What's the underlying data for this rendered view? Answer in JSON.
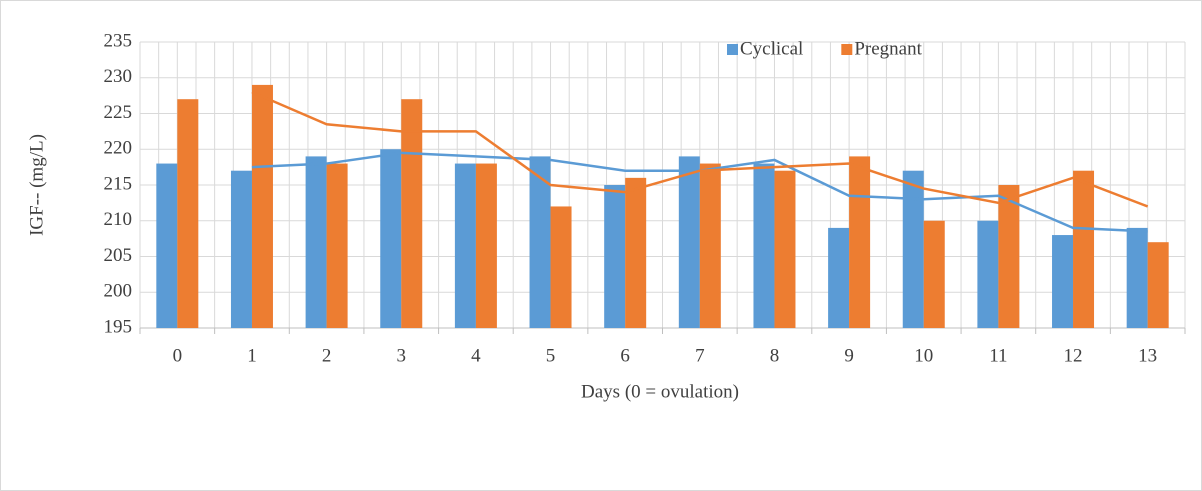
{
  "chart_data": {
    "type": "bar",
    "xlabel": "Days (0 = ovulation)",
    "ylabel": "IGF-- (mg/L)",
    "categories": [
      "0",
      "1",
      "2",
      "3",
      "4",
      "5",
      "6",
      "7",
      "8",
      "9",
      "10",
      "11",
      "12",
      "13"
    ],
    "series": [
      {
        "name": "Cyclical",
        "color": "#5b9bd5",
        "values": [
          218,
          217,
          219,
          220,
          218,
          219,
          215,
          219,
          218,
          209,
          217,
          210,
          208,
          209
        ],
        "trend": [
          null,
          217.5,
          218,
          219.5,
          219,
          218.5,
          217,
          217,
          218.5,
          213.5,
          213,
          213.5,
          209,
          208.5
        ]
      },
      {
        "name": "Pregnant",
        "color": "#ed7d31",
        "values": [
          227,
          229,
          218,
          227,
          218,
          212,
          216,
          218,
          217,
          219,
          210,
          215,
          217,
          207
        ],
        "trend": [
          null,
          228,
          223.5,
          222.5,
          222.5,
          215,
          214,
          217,
          217.5,
          218,
          214.5,
          212.5,
          216,
          212
        ]
      }
    ],
    "ylim": [
      195,
      235
    ],
    "yticks": [
      195,
      200,
      205,
      210,
      215,
      220,
      225,
      230,
      235
    ],
    "grid": true,
    "legend": "top"
  }
}
